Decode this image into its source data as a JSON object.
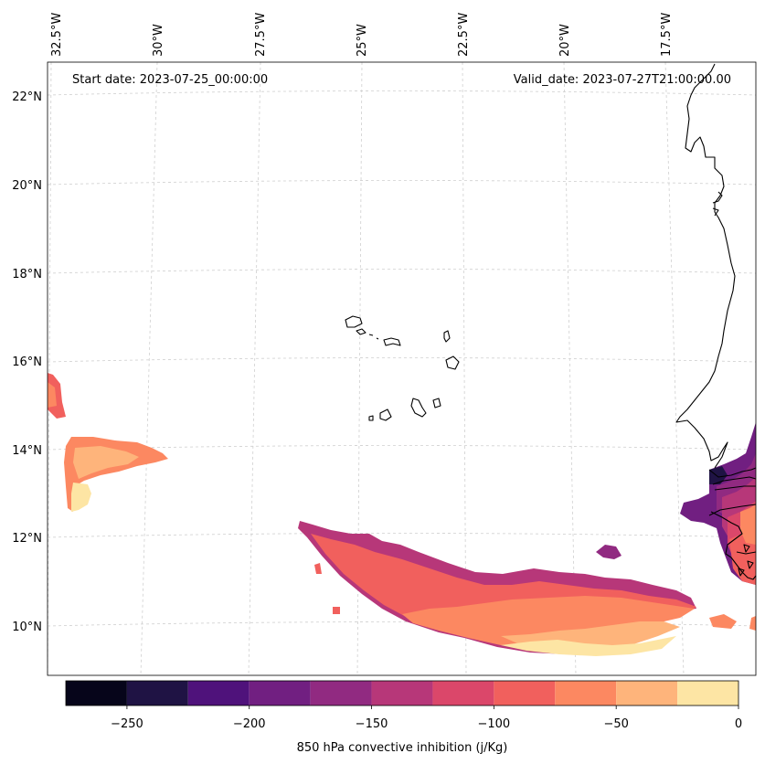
{
  "header": {
    "start_date": "Start date: 2023-07-25_00:00:00",
    "valid_date": "Valid_date: 2023-07-27T21:00:00.00"
  },
  "map": {
    "longitude_labels": [
      "32.5°W",
      "30°W",
      "27.5°W",
      "25°W",
      "22.5°W",
      "20°W",
      "17.5°W"
    ],
    "latitude_labels": [
      "22°N",
      "20°N",
      "18°N",
      "16°N",
      "14°N",
      "12°N",
      "10°N"
    ],
    "gridlines": true
  },
  "colorbar": {
    "label": "850 hPa convective inhibition (j/Kg)",
    "tick_labels": [
      "−250",
      "−200",
      "−150",
      "−100",
      "−50",
      "0"
    ],
    "levels": [
      -275,
      -250,
      -225,
      -200,
      -175,
      -150,
      -125,
      -100,
      -75,
      -50,
      -25,
      0
    ],
    "colors": [
      "#06051a",
      "#1f1344",
      "#4f127b",
      "#711f81",
      "#912a81",
      "#b73779",
      "#db476a",
      "#f1605d",
      "#fc8861",
      "#feb47b",
      "#fde5a4"
    ]
  },
  "colors": {
    "coastline": "#000000",
    "gridline": "#cccccc"
  }
}
